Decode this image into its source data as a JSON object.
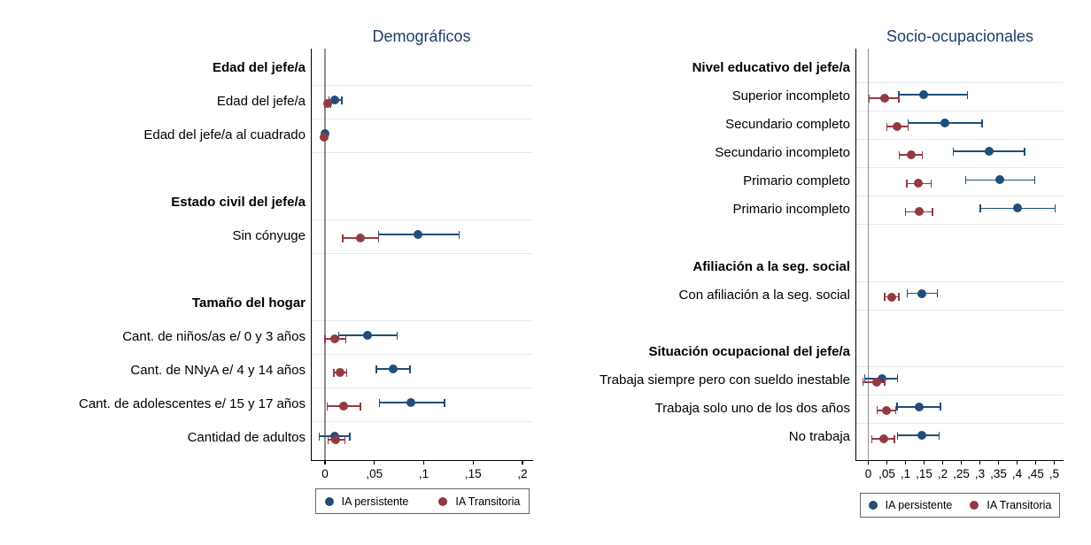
{
  "figure": {
    "background": "#ffffff",
    "title_color": "#203d69",
    "series_colors": {
      "persistente": "#1f4e79",
      "transitoria": "#943a40"
    },
    "grid_color": "#e2eaee",
    "zero_line_color": "#8f8f8f",
    "legend": {
      "position": "bottom",
      "items": [
        {
          "label": "IA persistente",
          "series": "persistente",
          "marker": "circle-icon"
        },
        {
          "label": "IA Transitoria",
          "series": "transitoria",
          "marker": "circle-icon"
        }
      ]
    }
  },
  "chart_data": [
    {
      "type": "scatter",
      "subtype": "forest-coefplot",
      "title": "Demográficos",
      "xlabel": "",
      "ylabel": "",
      "xlim": [
        -0.015,
        0.21
      ],
      "grid": true,
      "legend_entries": [
        "IA persistente",
        "IA Transitoria"
      ],
      "axis": {
        "ticks": [
          {
            "v": 0.0,
            "label": "0"
          },
          {
            "v": 0.05,
            "label": ",05"
          },
          {
            "v": 0.1,
            "label": ",1"
          },
          {
            "v": 0.15,
            "label": ",15"
          },
          {
            "v": 0.2,
            "label": ",2"
          }
        ]
      },
      "rows": [
        {
          "kind": "header",
          "label": "Edad del jefe/a"
        },
        {
          "kind": "item",
          "label": "Edad del jefe/a",
          "persistente": {
            "est": 0.01,
            "lo": 0.004,
            "hi": 0.017
          },
          "transitoria": {
            "est": 0.003,
            "lo": 0.0,
            "hi": 0.006
          }
        },
        {
          "kind": "item",
          "label": "Edad del jefe/a al cuadrado",
          "persistente": {
            "est": 0.0,
            "lo": -0.001,
            "hi": 0.001
          },
          "transitoria": {
            "est": -0.001,
            "lo": -0.001,
            "hi": 0.0
          }
        },
        {
          "kind": "spacer",
          "label": ""
        },
        {
          "kind": "header",
          "label": "Estado civil del jefe/a"
        },
        {
          "kind": "item",
          "label": "Sin cónyuge",
          "persistente": {
            "est": 0.094,
            "lo": 0.054,
            "hi": 0.136
          },
          "transitoria": {
            "est": 0.036,
            "lo": 0.018,
            "hi": 0.054
          }
        },
        {
          "kind": "spacer",
          "label": ""
        },
        {
          "kind": "header",
          "label": "Tamaño del hogar"
        },
        {
          "kind": "item",
          "label": "Cant. de niños/as e/ 0 y 3 años",
          "persistente": {
            "est": 0.043,
            "lo": 0.014,
            "hi": 0.073
          },
          "transitoria": {
            "est": 0.01,
            "lo": 0.0,
            "hi": 0.021
          }
        },
        {
          "kind": "item",
          "label": "Cant. de NNyA e/ 4 y 14 años",
          "persistente": {
            "est": 0.069,
            "lo": 0.052,
            "hi": 0.086
          },
          "transitoria": {
            "est": 0.015,
            "lo": 0.009,
            "hi": 0.022
          }
        },
        {
          "kind": "item",
          "label": "Cant. de adolescentes e/ 15 y 17 años",
          "persistente": {
            "est": 0.087,
            "lo": 0.055,
            "hi": 0.121
          },
          "transitoria": {
            "est": 0.019,
            "lo": 0.002,
            "hi": 0.036
          }
        },
        {
          "kind": "item",
          "label": "Cantidad de adultos",
          "persistente": {
            "est": 0.01,
            "lo": -0.006,
            "hi": 0.025
          },
          "transitoria": {
            "est": 0.011,
            "lo": 0.003,
            "hi": 0.02
          }
        }
      ]
    },
    {
      "type": "scatter",
      "subtype": "forest-coefplot",
      "title": "Socio-ocupacionales",
      "xlabel": "",
      "ylabel": "",
      "xlim": [
        -0.035,
        0.525
      ],
      "grid": true,
      "legend_entries": [
        "IA persistente",
        "IA Transitoria"
      ],
      "axis": {
        "ticks": [
          {
            "v": 0.0,
            "label": "0"
          },
          {
            "v": 0.05,
            "label": ",05"
          },
          {
            "v": 0.1,
            "label": ",1"
          },
          {
            "v": 0.15,
            "label": ",15"
          },
          {
            "v": 0.2,
            "label": ",2"
          },
          {
            "v": 0.25,
            "label": ",25"
          },
          {
            "v": 0.3,
            "label": ",3"
          },
          {
            "v": 0.35,
            "label": ",35"
          },
          {
            "v": 0.4,
            "label": ",4"
          },
          {
            "v": 0.45,
            "label": ",45"
          },
          {
            "v": 0.5,
            "label": ",5"
          }
        ]
      },
      "rows": [
        {
          "kind": "header",
          "label": "Nivel educativo del jefe/a"
        },
        {
          "kind": "item",
          "label": "Superior incompleto",
          "persistente": {
            "est": 0.149,
            "lo": 0.082,
            "hi": 0.267
          },
          "transitoria": {
            "est": 0.044,
            "lo": 0.002,
            "hi": 0.082
          }
        },
        {
          "kind": "item",
          "label": "Secundario completo",
          "persistente": {
            "est": 0.205,
            "lo": 0.107,
            "hi": 0.306
          },
          "transitoria": {
            "est": 0.077,
            "lo": 0.05,
            "hi": 0.107
          }
        },
        {
          "kind": "item",
          "label": "Secundario incompleto",
          "persistente": {
            "est": 0.325,
            "lo": 0.229,
            "hi": 0.42
          },
          "transitoria": {
            "est": 0.115,
            "lo": 0.084,
            "hi": 0.145
          }
        },
        {
          "kind": "item",
          "label": "Primario completo",
          "persistente": {
            "est": 0.354,
            "lo": 0.262,
            "hi": 0.448
          },
          "transitoria": {
            "est": 0.135,
            "lo": 0.104,
            "hi": 0.169
          }
        },
        {
          "kind": "item",
          "label": "Primario incompleto",
          "persistente": {
            "est": 0.402,
            "lo": 0.301,
            "hi": 0.502
          },
          "transitoria": {
            "est": 0.137,
            "lo": 0.1,
            "hi": 0.173
          }
        },
        {
          "kind": "spacer",
          "label": ""
        },
        {
          "kind": "header",
          "label": "Afiliación a la seg. social"
        },
        {
          "kind": "item",
          "label": "Con afiliación a la seg. social",
          "persistente": {
            "est": 0.145,
            "lo": 0.105,
            "hi": 0.186
          },
          "transitoria": {
            "est": 0.063,
            "lo": 0.044,
            "hi": 0.082
          }
        },
        {
          "kind": "spacer",
          "label": ""
        },
        {
          "kind": "header",
          "label": "Situación ocupacional del jefe/a"
        },
        {
          "kind": "item",
          "label": "Trabaja siempre pero con sueldo inestable",
          "persistente": {
            "est": 0.036,
            "lo": -0.01,
            "hi": 0.079
          },
          "transitoria": {
            "est": 0.022,
            "lo": -0.014,
            "hi": 0.044
          }
        },
        {
          "kind": "item",
          "label": "Trabaja solo uno de los dos años",
          "persistente": {
            "est": 0.136,
            "lo": 0.077,
            "hi": 0.194
          },
          "transitoria": {
            "est": 0.048,
            "lo": 0.024,
            "hi": 0.074
          }
        },
        {
          "kind": "item",
          "label": "No trabaja",
          "persistente": {
            "est": 0.145,
            "lo": 0.078,
            "hi": 0.19
          },
          "transitoria": {
            "est": 0.042,
            "lo": 0.01,
            "hi": 0.07
          }
        }
      ]
    }
  ]
}
